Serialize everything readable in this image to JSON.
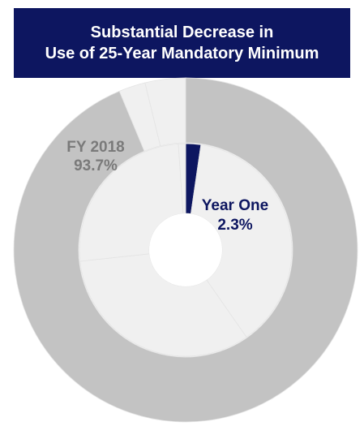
{
  "chart_data": {
    "type": "pie",
    "title_lines": [
      "Substantial Decrease in",
      "Use of 25-Year Mandatory Minimum"
    ],
    "rings": [
      {
        "name": "",
        "label": "FY 2018",
        "value_label": "93.7%",
        "slices": [
          {
            "name": "",
            "value": 93.7,
            "color": "#c3c3c3"
          },
          {
            "name": "",
            "value": 2.5,
            "color": "#f0f0f0"
          },
          {
            "name": "",
            "value": 3.8,
            "color": "#f0f0f0"
          }
        ]
      },
      {
        "name": "",
        "label": "Year One",
        "value_label": "2.3%",
        "slices": [
          {
            "name": "",
            "value": 2.3,
            "color": "#0d1660"
          },
          {
            "name": "",
            "value": 38.0,
            "color": "#f0f0f0"
          },
          {
            "name": "",
            "value": 33.0,
            "color": "#f0f0f0"
          },
          {
            "name": "",
            "value": 25.6,
            "color": "#f0f0f0"
          },
          {
            "name": "",
            "value": 1.1,
            "color": "#f0f0f0"
          }
        ]
      }
    ],
    "colors": {
      "accent": "#0d1660",
      "outer_label": "#7a7a7a",
      "inner_label": "#0d1660"
    }
  }
}
